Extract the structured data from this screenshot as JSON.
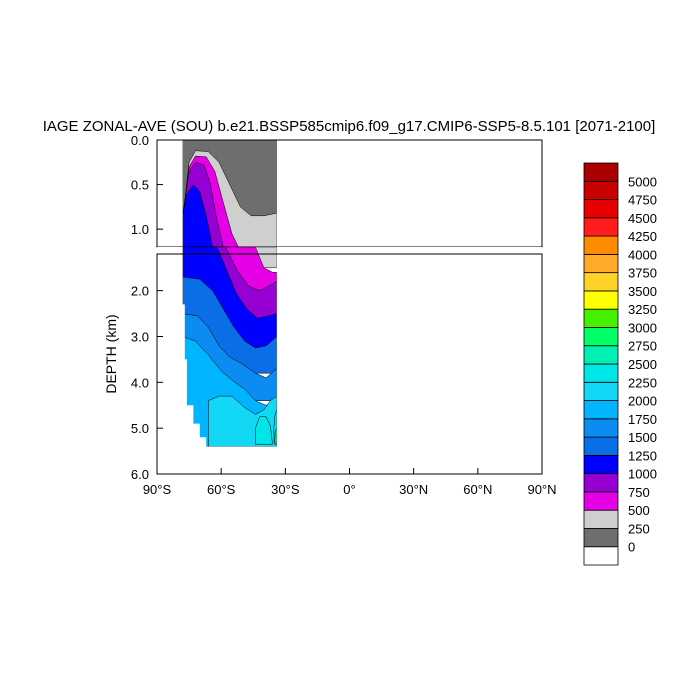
{
  "chart_data": {
    "type": "heatmap",
    "title": "IAGE ZONAL-AVE (SOU) b.e21.BSSP585cmip6.f09_g17.CMIP6-SSP5-8.5.101 [2071-2100]",
    "ylabel": "DEPTH (km)",
    "xlabel": "",
    "xlim": [
      -90,
      90
    ],
    "x_ticks": [
      {
        "value": -90,
        "label": "90°S"
      },
      {
        "value": -60,
        "label": "60°S"
      },
      {
        "value": -30,
        "label": "30°S"
      },
      {
        "value": 0,
        "label": "0°"
      },
      {
        "value": 30,
        "label": "30°N"
      },
      {
        "value": 60,
        "label": "60°N"
      },
      {
        "value": 90,
        "label": "90°N"
      }
    ],
    "upper_panel": {
      "ylim": [
        0.0,
        1.2
      ],
      "y_ticks": [
        {
          "value": 0.0,
          "label": "0.0"
        },
        {
          "value": 0.5,
          "label": "0.5"
        },
        {
          "value": 1.0,
          "label": "1.0"
        }
      ]
    },
    "lower_panel": {
      "ylim": [
        1.2,
        6.0
      ],
      "y_ticks": [
        {
          "value": 2.0,
          "label": "2.0"
        },
        {
          "value": 3.0,
          "label": "3.0"
        },
        {
          "value": 4.0,
          "label": "4.0"
        },
        {
          "value": 5.0,
          "label": "5.0"
        },
        {
          "value": 6.0,
          "label": "6.0"
        }
      ]
    },
    "colorbar": {
      "levels": [
        "0",
        "250",
        "500",
        "750",
        "1000",
        "1250",
        "1500",
        "1750",
        "2000",
        "2250",
        "2500",
        "2750",
        "3000",
        "3250",
        "3500",
        "3750",
        "4000",
        "4250",
        "4500",
        "4750",
        "5000"
      ],
      "colors": [
        "#ffffff",
        "#6e6e6e",
        "#cfcfcf",
        "#e600e6",
        "#9600d2",
        "#0000ff",
        "#0a6ee6",
        "#0a8cf0",
        "#00b4ff",
        "#12d7f5",
        "#00e6e6",
        "#00f0b4",
        "#00ff64",
        "#46f000",
        "#ffff00",
        "#ffd228",
        "#ffaa28",
        "#ff8c00",
        "#ff1e1e",
        "#e60000",
        "#c80000",
        "#aa0000"
      ]
    },
    "contour_bands": [
      {
        "range": "0-250",
        "color": "#6e6e6e",
        "top": [
          [
            -78,
            0.02
          ],
          [
            -34,
            0.0
          ]
        ],
        "region": "upper ocean cap",
        "lat_range": [
          -78,
          -34
        ]
      },
      {
        "range": "250-500",
        "color": "#cfcfcf",
        "region": "upper ocean layer below cap",
        "lat_range": [
          -74,
          -34
        ]
      },
      {
        "range": "500-750",
        "color": "#e600e6",
        "region": "tongue from 72°S descending north to ~42°S at 1.8 km"
      },
      {
        "range": "750-1000",
        "color": "#9600d2",
        "region": "tongue from 72°S descending north to ~35°S at 2.6 km"
      },
      {
        "range": "1000-1250",
        "color": "#0000ff",
        "region": "core 75°S-55°S above 2 km descending to ~3.3 km at 35°S"
      },
      {
        "range": "1250-1500",
        "color": "#0a6ee6",
        "region": "band ~1.8-3.2 km"
      },
      {
        "range": "1500-1750",
        "color": "#0a8cf0",
        "region": "band ~2.6-4.2 km"
      },
      {
        "range": "1750-2000",
        "color": "#00b4ff",
        "region": "deep band ~3-4.5 km"
      },
      {
        "range": "2000-2250",
        "color": "#12d7f5",
        "region": "bottom water ~4.3-5.4 km"
      },
      {
        "range": "2250-2500",
        "color": "#00e6e6",
        "region": "patches near 45°S-33°S at 4.6-5.3 km"
      },
      {
        "range": "2750-3000",
        "color": "#00ff64",
        "region": "small spot near 33°S at 5.2 km"
      }
    ]
  }
}
